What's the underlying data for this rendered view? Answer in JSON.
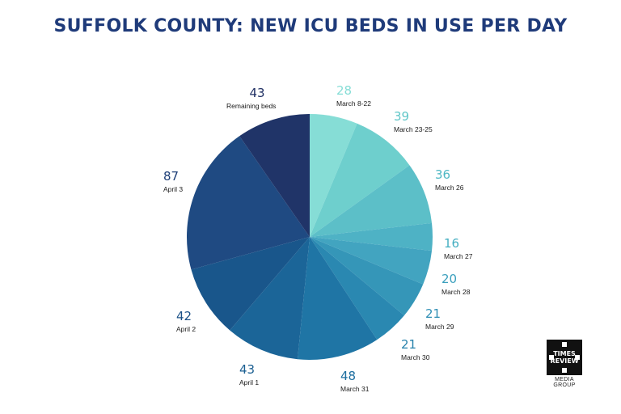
{
  "chart_data": {
    "type": "pie",
    "title": "SUFFOLK COUNTY: NEW ICU BEDS IN USE PER DAY",
    "slices": [
      {
        "label": "March 8-22",
        "value": 28,
        "color": "#86ddd6",
        "value_color": "#86ddd6"
      },
      {
        "label": "March 23-25",
        "value": 39,
        "color": "#6ecfcd",
        "value_color": "#5fc6c8"
      },
      {
        "label": "March 26",
        "value": 36,
        "color": "#5cbfc8",
        "value_color": "#4fb8c4"
      },
      {
        "label": "March 27",
        "value": 16,
        "color": "#4eb2c5",
        "value_color": "#45afc2"
      },
      {
        "label": "March 28",
        "value": 20,
        "color": "#42a4c0",
        "value_color": "#3a9fbd"
      },
      {
        "label": "March 29",
        "value": 21,
        "color": "#3596b8",
        "value_color": "#2f8fb5"
      },
      {
        "label": "March 30",
        "value": 21,
        "color": "#2a88b1",
        "value_color": "#2782ac"
      },
      {
        "label": "March 31",
        "value": 48,
        "color": "#1f75a5",
        "value_color": "#1e6fa0"
      },
      {
        "label": "April 1",
        "value": 43,
        "color": "#1b6598",
        "value_color": "#1b5f92"
      },
      {
        "label": "April 2",
        "value": 42,
        "color": "#19568b",
        "value_color": "#1a5087"
      },
      {
        "label": "April 3",
        "value": 87,
        "color": "#1f4a82",
        "value_color": "#1e3f78"
      },
      {
        "label": "Remaining beds",
        "value": 43,
        "color": "#203468",
        "value_color": "#1f2f63"
      }
    ]
  },
  "logo": {
    "text": "TIMES REVIEW",
    "subtitle": "MEDIA GROUP"
  }
}
